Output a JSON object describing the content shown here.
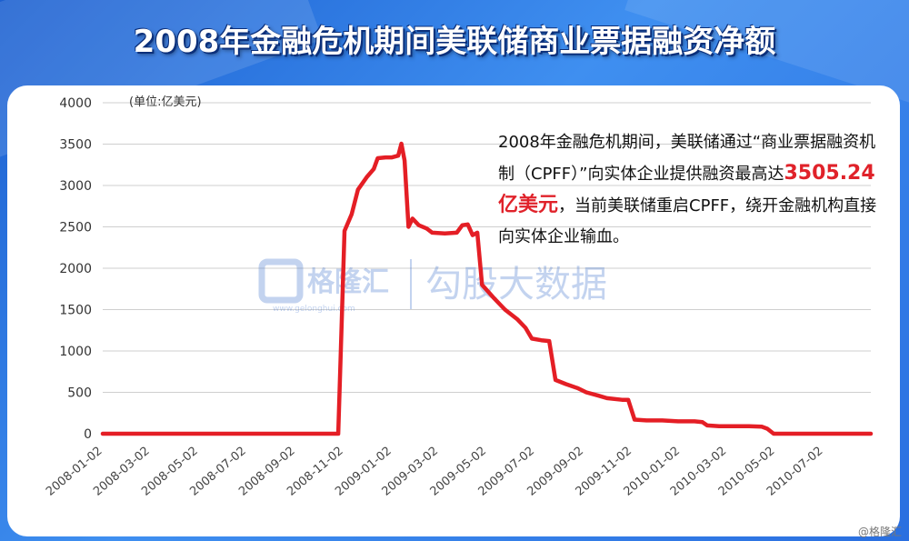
{
  "title": "2008年金融危机期间美联储商业票据融资净额",
  "watermark": {
    "brand": "格隆汇",
    "url": "www.gelonghui.com",
    "product": "勾股大数据"
  },
  "annotation": {
    "part1": "2008年金融危机期间，美联储通过“商业票据融资机制（CPFF）”向实体企业提供融资最高达",
    "highlight": "3505.24亿美元",
    "part2": "，当前美联储重启CPFF，绕开金融机构直接向实体企业输血。"
  },
  "credit": "@格隆汇",
  "colors": {
    "line": "#e41e25",
    "grid": "#cfcfcf",
    "highlight": "#e0222a"
  },
  "chart_data": {
    "type": "line",
    "title": "2008年金融危机期间美联储商业票据融资净额",
    "ylabel": "(单位:亿美元)",
    "ylim": [
      0,
      4000
    ],
    "yticks": [
      0,
      500,
      1000,
      1500,
      2000,
      2500,
      3000,
      3500,
      4000
    ],
    "xrange": [
      "2008-01-02",
      "2010-08-31"
    ],
    "xticks": [
      "2008-01-02",
      "2008-03-02",
      "2008-05-02",
      "2008-07-02",
      "2008-09-02",
      "2008-11-02",
      "2009-01-02",
      "2009-03-02",
      "2009-05-02",
      "2009-07-02",
      "2009-09-02",
      "2009-11-02",
      "2010-01-02",
      "2010-03-02",
      "2010-05-02",
      "2010-07-02"
    ],
    "grid": true,
    "series": [
      {
        "values": [
          [
            "2008-01-02",
            0
          ],
          [
            "2008-10-26",
            0
          ],
          [
            "2008-10-30",
            1200
          ],
          [
            "2008-11-03",
            2450
          ],
          [
            "2008-11-12",
            2650
          ],
          [
            "2008-11-20",
            2950
          ],
          [
            "2008-12-01",
            3100
          ],
          [
            "2008-12-10",
            3200
          ],
          [
            "2008-12-15",
            3330
          ],
          [
            "2008-12-25",
            3340
          ],
          [
            "2009-01-02",
            3340
          ],
          [
            "2009-01-10",
            3360
          ],
          [
            "2009-01-14",
            3505.24
          ],
          [
            "2009-01-18",
            3300
          ],
          [
            "2009-01-23",
            2500
          ],
          [
            "2009-01-28",
            2600
          ],
          [
            "2009-02-05",
            2520
          ],
          [
            "2009-02-15",
            2480
          ],
          [
            "2009-02-22",
            2430
          ],
          [
            "2009-03-10",
            2420
          ],
          [
            "2009-03-25",
            2430
          ],
          [
            "2009-04-01",
            2520
          ],
          [
            "2009-04-08",
            2530
          ],
          [
            "2009-04-14",
            2400
          ],
          [
            "2009-04-20",
            2430
          ],
          [
            "2009-04-26",
            1800
          ],
          [
            "2009-05-10",
            1650
          ],
          [
            "2009-05-25",
            1500
          ],
          [
            "2009-06-10",
            1380
          ],
          [
            "2009-06-20",
            1280
          ],
          [
            "2009-06-28",
            1150
          ],
          [
            "2009-07-10",
            1130
          ],
          [
            "2009-07-20",
            1120
          ],
          [
            "2009-07-28",
            650
          ],
          [
            "2009-08-10",
            600
          ],
          [
            "2009-08-25",
            550
          ],
          [
            "2009-09-05",
            500
          ],
          [
            "2009-09-20",
            460
          ],
          [
            "2009-10-01",
            430
          ],
          [
            "2009-10-20",
            410
          ],
          [
            "2009-10-28",
            410
          ],
          [
            "2009-11-05",
            170
          ],
          [
            "2009-11-20",
            160
          ],
          [
            "2009-12-10",
            160
          ],
          [
            "2009-12-30",
            150
          ],
          [
            "2010-01-20",
            150
          ],
          [
            "2010-01-30",
            140
          ],
          [
            "2010-02-05",
            100
          ],
          [
            "2010-02-20",
            90
          ],
          [
            "2010-03-10",
            90
          ],
          [
            "2010-03-30",
            90
          ],
          [
            "2010-04-15",
            85
          ],
          [
            "2010-04-22",
            60
          ],
          [
            "2010-04-30",
            0
          ],
          [
            "2010-08-31",
            0
          ]
        ]
      }
    ]
  }
}
